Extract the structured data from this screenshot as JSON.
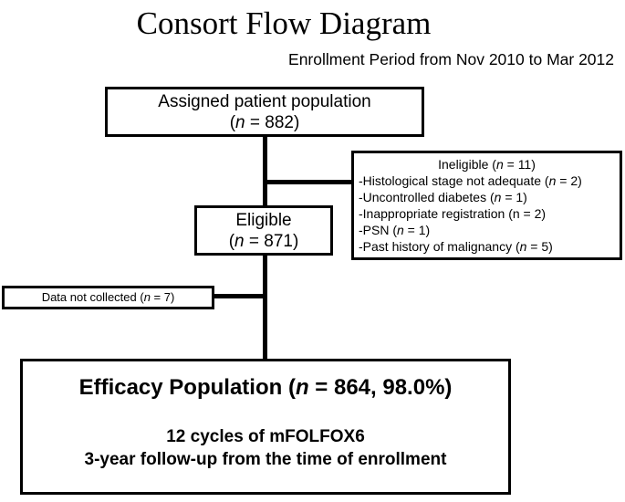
{
  "title": "Consort Flow Diagram",
  "subtitle": "Enrollment Period from Nov 2010 to Mar 2012",
  "colors": {
    "ink": "#000000",
    "background": "#ffffff"
  },
  "boxes": {
    "assigned": {
      "line1": [
        {
          "t": "Assigned patient population"
        }
      ],
      "line2": [
        {
          "t": "("
        },
        {
          "t": "n",
          "i": true
        },
        {
          "t": " = 882)"
        }
      ]
    },
    "ineligible": {
      "title": [
        {
          "t": "Ineligible ("
        },
        {
          "t": "n",
          "i": true
        },
        {
          "t": " = 11)"
        }
      ],
      "items": [
        [
          {
            "t": "-Histological stage not adequate ("
          },
          {
            "t": "n",
            "i": true
          },
          {
            "t": " = 2)"
          }
        ],
        [
          {
            "t": "-Uncontrolled diabetes ("
          },
          {
            "t": "n",
            "i": true
          },
          {
            "t": " = 1)"
          }
        ],
        [
          {
            "t": "-Inappropriate registration (n = 2)"
          }
        ],
        [
          {
            "t": "-PSN ("
          },
          {
            "t": "n",
            "i": true
          },
          {
            "t": " = 1)"
          }
        ],
        [
          {
            "t": "-Past history of malignancy ("
          },
          {
            "t": "n",
            "i": true
          },
          {
            "t": " = 5)"
          }
        ]
      ]
    },
    "eligible": {
      "line1": [
        {
          "t": "Eligible"
        }
      ],
      "line2": [
        {
          "t": "("
        },
        {
          "t": "n",
          "i": true
        },
        {
          "t": " = 871)"
        }
      ]
    },
    "data_not_collected": {
      "line": [
        {
          "t": "Data not collected ("
        },
        {
          "t": "n",
          "i": true
        },
        {
          "t": " = 7)"
        }
      ]
    },
    "efficacy": {
      "title": [
        {
          "t": "Efficacy Population ("
        },
        {
          "t": "n",
          "i": true
        },
        {
          "t": " = 864, 98.0%)"
        }
      ],
      "line_cycles": [
        {
          "t": "12 cycles of mFOLFOX6"
        }
      ],
      "line_followup": [
        {
          "t": "3-year follow-up from the time of enrollment"
        }
      ]
    }
  }
}
